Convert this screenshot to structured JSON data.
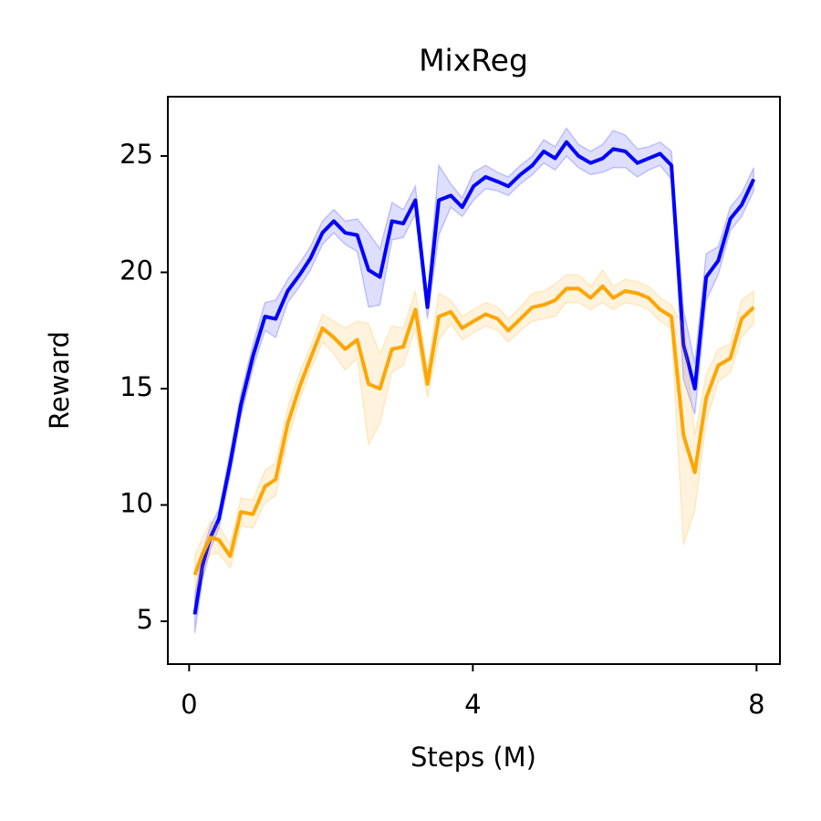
{
  "chart_data": {
    "type": "line",
    "title": "MixReg",
    "xlabel": "Steps (M)",
    "ylabel": "Reward",
    "x": [
      0.08,
      0.19,
      0.3,
      0.42,
      0.58,
      0.73,
      0.9,
      1.07,
      1.22,
      1.39,
      1.56,
      1.71,
      1.88,
      2.04,
      2.2,
      2.37,
      2.53,
      2.69,
      2.86,
      3.02,
      3.19,
      3.36,
      3.52,
      3.69,
      3.85,
      4.01,
      4.18,
      4.35,
      4.5,
      4.67,
      4.84,
      5.0,
      5.16,
      5.32,
      5.49,
      5.66,
      5.83,
      5.98,
      6.15,
      6.32,
      6.48,
      6.64,
      6.8,
      6.97,
      7.13,
      7.29,
      7.46,
      7.63,
      7.79,
      7.96
    ],
    "series": [
      {
        "color": "#0000ff",
        "values": [
          5.3,
          7.4,
          8.6,
          9.4,
          11.8,
          14.3,
          16.4,
          18.1,
          18.0,
          19.2,
          19.9,
          20.6,
          21.7,
          22.2,
          21.7,
          21.6,
          20.1,
          19.8,
          22.2,
          22.1,
          23.1,
          18.5,
          23.1,
          23.3,
          22.8,
          23.7,
          24.1,
          23.9,
          23.7,
          24.2,
          24.6,
          25.2,
          24.9,
          25.6,
          25.0,
          24.7,
          24.9,
          25.3,
          25.2,
          24.7,
          24.9,
          25.1,
          24.6,
          16.9,
          15.0,
          19.8,
          20.5,
          22.3,
          22.9,
          24.0
        ],
        "errors": [
          0.8,
          0.6,
          0.5,
          0.4,
          0.5,
          0.5,
          0.5,
          0.6,
          0.8,
          0.5,
          0.5,
          0.5,
          0.5,
          0.5,
          0.5,
          0.7,
          1.6,
          1.2,
          0.8,
          0.6,
          0.6,
          0.5,
          1.5,
          0.5,
          0.4,
          0.6,
          0.5,
          0.4,
          0.4,
          0.4,
          0.4,
          0.5,
          0.5,
          0.6,
          0.5,
          0.5,
          0.6,
          0.8,
          0.7,
          0.6,
          0.5,
          0.5,
          0.6,
          1.5,
          1.1,
          1.0,
          0.6,
          0.5,
          0.5,
          0.5
        ]
      },
      {
        "color": "#ffa500",
        "values": [
          7.0,
          7.9,
          8.6,
          8.5,
          7.8,
          9.7,
          9.6,
          10.8,
          11.1,
          13.5,
          15.1,
          16.3,
          17.6,
          17.2,
          16.7,
          17.1,
          15.2,
          15.0,
          16.7,
          16.8,
          18.4,
          15.2,
          18.1,
          18.3,
          17.6,
          17.9,
          18.2,
          18.0,
          17.5,
          18.0,
          18.5,
          18.6,
          18.8,
          19.3,
          19.3,
          18.9,
          19.4,
          18.9,
          19.2,
          19.1,
          18.9,
          18.4,
          18.1,
          13.0,
          11.4,
          14.6,
          16.0,
          16.3,
          18.0,
          18.5
        ],
        "errors": [
          0.8,
          0.7,
          0.7,
          0.6,
          0.5,
          0.6,
          0.6,
          0.7,
          0.7,
          0.7,
          0.6,
          0.5,
          0.6,
          0.7,
          0.9,
          0.8,
          2.6,
          1.5,
          1.0,
          0.8,
          0.8,
          0.6,
          1.0,
          0.5,
          0.5,
          0.5,
          0.5,
          0.5,
          0.5,
          0.5,
          0.6,
          0.6,
          0.7,
          0.6,
          0.6,
          0.5,
          0.7,
          0.5,
          0.5,
          0.5,
          0.5,
          0.5,
          0.5,
          4.7,
          1.6,
          1.0,
          0.7,
          0.6,
          0.8,
          0.7
        ]
      }
    ],
    "xlim": [
      -0.3,
      8.33
    ],
    "xticks": [
      0,
      4,
      8
    ],
    "ylim": [
      3.16,
      27.55
    ],
    "yticks": [
      5,
      10,
      15,
      20,
      25
    ],
    "grid": false
  }
}
